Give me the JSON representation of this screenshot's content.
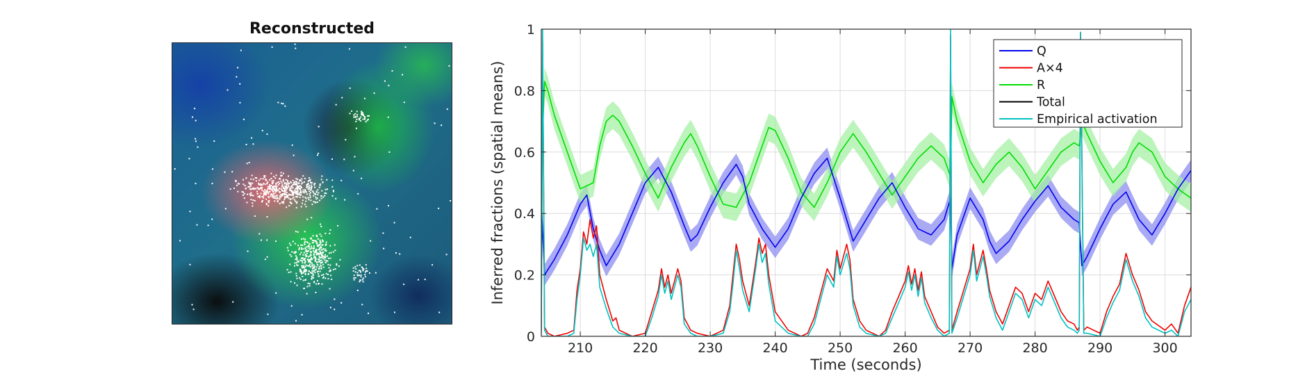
{
  "image_panel": {
    "title": "Reconstructed"
  },
  "chart_data": {
    "type": "line",
    "title": "",
    "xlabel": "Time (seconds)",
    "ylabel": "Inferred fractions (spatial means)",
    "xlim": [
      204,
      304
    ],
    "ylim": [
      0,
      1
    ],
    "xticks": [
      210,
      220,
      230,
      240,
      250,
      260,
      270,
      280,
      290,
      300
    ],
    "yticks": [
      0,
      0.2,
      0.4,
      0.6,
      0.8,
      1
    ],
    "xtick_labels": [
      "210",
      "220",
      "230",
      "240",
      "250",
      "260",
      "270",
      "280",
      "290",
      "300"
    ],
    "ytick_labels": [
      "0",
      "0.2",
      "0.4",
      "0.6",
      "0.8",
      "1"
    ],
    "grid": true,
    "legend_position": "top-right",
    "series": [
      {
        "name": "Q",
        "color": "#0000ee",
        "band_color": "#8c8cf0",
        "band_halfwidth": 0.035,
        "x": [
          204,
          204.5,
          206,
          208,
          210,
          211,
          212,
          213,
          214,
          216,
          218,
          220,
          222,
          224,
          226,
          227,
          228,
          230,
          232,
          234,
          235,
          236,
          238,
          240,
          242,
          244,
          246,
          248,
          250,
          252,
          254,
          256,
          258,
          260,
          262,
          264,
          266,
          267,
          267.2,
          268,
          270,
          272,
          273,
          274,
          276,
          278,
          280,
          282,
          284,
          286,
          286.8,
          287.2,
          288,
          290,
          292,
          294,
          296,
          298,
          300,
          302,
          304
        ],
        "y": [
          0.44,
          0.2,
          0.25,
          0.33,
          0.43,
          0.46,
          0.35,
          0.28,
          0.23,
          0.3,
          0.4,
          0.5,
          0.55,
          0.47,
          0.36,
          0.31,
          0.33,
          0.42,
          0.5,
          0.56,
          0.52,
          0.43,
          0.35,
          0.29,
          0.35,
          0.45,
          0.53,
          0.58,
          0.45,
          0.31,
          0.38,
          0.45,
          0.5,
          0.42,
          0.35,
          0.33,
          0.38,
          0.45,
          0.22,
          0.33,
          0.45,
          0.38,
          0.31,
          0.27,
          0.31,
          0.38,
          0.44,
          0.49,
          0.42,
          0.38,
          0.37,
          0.23,
          0.26,
          0.35,
          0.43,
          0.47,
          0.38,
          0.33,
          0.4,
          0.48,
          0.54
        ]
      },
      {
        "name": "A×4",
        "color": "#ee0000",
        "x": [
          204,
          204.2,
          204.5,
          205,
          206,
          208,
          209,
          209.5,
          210,
          210.5,
          211,
          211.5,
          212,
          212.5,
          213,
          214,
          215,
          215.5,
          216,
          217,
          218,
          220,
          221,
          222,
          222.5,
          223,
          223.5,
          224,
          225,
          225.5,
          226,
          227,
          228,
          230,
          232,
          233,
          233.5,
          234,
          234.5,
          235,
          236,
          237,
          237.5,
          238,
          238.5,
          239,
          240,
          242,
          244,
          245,
          246,
          247,
          248,
          249,
          249.5,
          250,
          251,
          251.5,
          252,
          253,
          254,
          256,
          257,
          258,
          259,
          260,
          260.5,
          261,
          261.5,
          262,
          262.5,
          263,
          264,
          265,
          266,
          266.8,
          267,
          267.2,
          268,
          269,
          270,
          270.5,
          271,
          272,
          272.5,
          273,
          274,
          275,
          276,
          277,
          278,
          279,
          280,
          281,
          282,
          283,
          284,
          285,
          286,
          286.5,
          286.8,
          287,
          287.5,
          288,
          290,
          291,
          292,
          293,
          293.5,
          294,
          295,
          296,
          297,
          298,
          300,
          301,
          302,
          303,
          304
        ],
        "y": [
          0.02,
          0.96,
          0.03,
          0.01,
          0.0,
          0.01,
          0.02,
          0.15,
          0.22,
          0.34,
          0.3,
          0.38,
          0.32,
          0.36,
          0.2,
          0.12,
          0.05,
          0.06,
          0.02,
          0.01,
          0.0,
          0.01,
          0.08,
          0.15,
          0.22,
          0.16,
          0.2,
          0.14,
          0.22,
          0.18,
          0.06,
          0.02,
          0.01,
          0.0,
          0.02,
          0.1,
          0.2,
          0.3,
          0.25,
          0.18,
          0.1,
          0.24,
          0.32,
          0.27,
          0.3,
          0.2,
          0.08,
          0.02,
          0.0,
          0.01,
          0.06,
          0.14,
          0.22,
          0.18,
          0.28,
          0.22,
          0.3,
          0.25,
          0.12,
          0.05,
          0.02,
          0.0,
          0.02,
          0.08,
          0.13,
          0.18,
          0.23,
          0.17,
          0.22,
          0.15,
          0.21,
          0.13,
          0.08,
          0.03,
          0.01,
          0.02,
          0.98,
          0.02,
          0.08,
          0.15,
          0.22,
          0.3,
          0.2,
          0.28,
          0.22,
          0.15,
          0.08,
          0.04,
          0.1,
          0.16,
          0.14,
          0.08,
          0.14,
          0.12,
          0.18,
          0.13,
          0.08,
          0.05,
          0.04,
          0.02,
          0.03,
          0.99,
          0.02,
          0.03,
          0.01,
          0.08,
          0.13,
          0.17,
          0.22,
          0.27,
          0.2,
          0.15,
          0.08,
          0.05,
          0.02,
          0.04,
          0.01,
          0.1,
          0.16
        ]
      },
      {
        "name": "R",
        "color": "#00dd00",
        "band_color": "#a6f0a6",
        "band_halfwidth": 0.045,
        "x": [
          204,
          204.5,
          205,
          206,
          208,
          210,
          212,
          213,
          214,
          215,
          216,
          218,
          220,
          222,
          224,
          226,
          227,
          228,
          230,
          232,
          234,
          236,
          238,
          239,
          240,
          242,
          244,
          246,
          248,
          250,
          252,
          254,
          256,
          258,
          260,
          262,
          264,
          266,
          267,
          267.2,
          268,
          270,
          272,
          274,
          276,
          278,
          280,
          282,
          284,
          286,
          286.8,
          287.2,
          288,
          290,
          292,
          294,
          295,
          296,
          298,
          300,
          302,
          304
        ],
        "y": [
          0.55,
          0.83,
          0.8,
          0.72,
          0.6,
          0.48,
          0.5,
          0.62,
          0.7,
          0.72,
          0.7,
          0.62,
          0.53,
          0.45,
          0.55,
          0.63,
          0.66,
          0.62,
          0.52,
          0.43,
          0.42,
          0.5,
          0.62,
          0.68,
          0.67,
          0.58,
          0.47,
          0.42,
          0.5,
          0.6,
          0.66,
          0.6,
          0.53,
          0.46,
          0.52,
          0.58,
          0.62,
          0.58,
          0.52,
          0.78,
          0.7,
          0.57,
          0.5,
          0.56,
          0.6,
          0.55,
          0.48,
          0.54,
          0.6,
          0.63,
          0.62,
          0.7,
          0.66,
          0.57,
          0.5,
          0.55,
          0.6,
          0.63,
          0.6,
          0.52,
          0.48,
          0.45
        ]
      },
      {
        "name": "Total",
        "color": "#000000",
        "x": [],
        "y": []
      },
      {
        "name": "Empirical activation",
        "color": "#00c0c0",
        "x": [
          204,
          204.2,
          204.5,
          205,
          206,
          208,
          209,
          209.5,
          210,
          210.5,
          211,
          211.5,
          212,
          212.5,
          213,
          214,
          215,
          216,
          218,
          220,
          221,
          222,
          222.5,
          223,
          223.5,
          224,
          225,
          225.5,
          226,
          227,
          228,
          230,
          232,
          233,
          233.5,
          234,
          234.5,
          235,
          236,
          237,
          237.5,
          238,
          238.5,
          239,
          240,
          242,
          244,
          245,
          246,
          247,
          248,
          249,
          249.5,
          250,
          251,
          251.5,
          252,
          253,
          254,
          256,
          257,
          258,
          259,
          260,
          260.5,
          261,
          261.5,
          262,
          262.5,
          263,
          264,
          265,
          266,
          266.8,
          267,
          267.2,
          268,
          269,
          270,
          270.5,
          271,
          272,
          272.5,
          273,
          274,
          275,
          276,
          277,
          278,
          279,
          280,
          281,
          282,
          283,
          284,
          285,
          286,
          286.5,
          286.8,
          287,
          287.5,
          288,
          290,
          291,
          292,
          293,
          293.5,
          294,
          295,
          296,
          297,
          298,
          300,
          301,
          302,
          303,
          304
        ],
        "y": [
          0.01,
          1.0,
          0.02,
          0.0,
          0.0,
          0.0,
          0.01,
          0.12,
          0.2,
          0.32,
          0.28,
          0.3,
          0.26,
          0.3,
          0.16,
          0.09,
          0.03,
          0.01,
          0.0,
          0.0,
          0.06,
          0.13,
          0.2,
          0.14,
          0.18,
          0.12,
          0.2,
          0.16,
          0.04,
          0.01,
          0.0,
          0.0,
          0.01,
          0.08,
          0.17,
          0.28,
          0.22,
          0.15,
          0.08,
          0.22,
          0.3,
          0.24,
          0.27,
          0.17,
          0.05,
          0.01,
          0.0,
          0.0,
          0.04,
          0.12,
          0.2,
          0.16,
          0.26,
          0.2,
          0.27,
          0.22,
          0.1,
          0.03,
          0.01,
          0.0,
          0.01,
          0.06,
          0.11,
          0.16,
          0.21,
          0.15,
          0.2,
          0.13,
          0.19,
          0.11,
          0.06,
          0.02,
          0.0,
          0.01,
          1.0,
          0.01,
          0.06,
          0.13,
          0.2,
          0.28,
          0.18,
          0.26,
          0.2,
          0.13,
          0.06,
          0.02,
          0.08,
          0.14,
          0.12,
          0.06,
          0.12,
          0.1,
          0.16,
          0.11,
          0.06,
          0.03,
          0.02,
          0.01,
          0.02,
          0.99,
          0.01,
          0.01,
          0.0,
          0.06,
          0.11,
          0.15,
          0.2,
          0.25,
          0.18,
          0.13,
          0.06,
          0.03,
          0.01,
          0.02,
          0.0,
          0.08,
          0.12
        ]
      }
    ]
  }
}
